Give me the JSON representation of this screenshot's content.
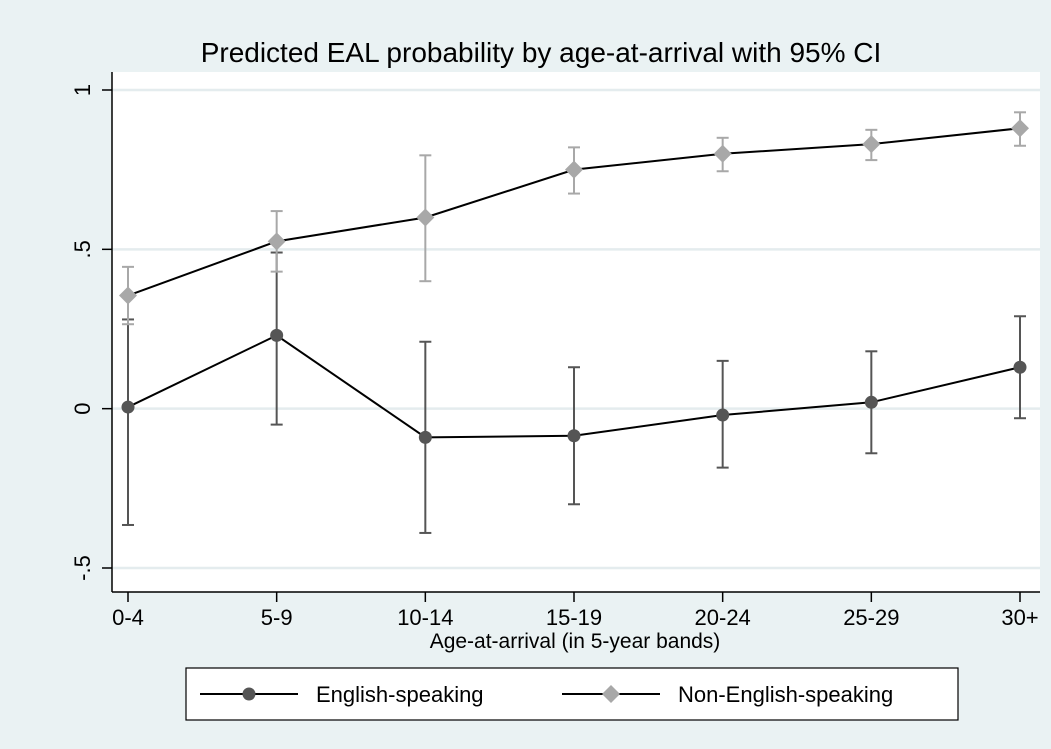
{
  "chart_data": {
    "type": "line",
    "title": "Predicted EAL probability by age-at-arrival with 95% CI",
    "xlabel": "Age-at-arrival (in 5-year bands)",
    "ylabel": "",
    "categories": [
      "0-4",
      "5-9",
      "10-14",
      "15-19",
      "20-24",
      "25-29",
      "30+"
    ],
    "ylim": [
      -0.5,
      1
    ],
    "yticks": [
      -0.5,
      0,
      0.5,
      1
    ],
    "ytick_labels": [
      "-.5",
      "0",
      ".5",
      "1"
    ],
    "grid": true,
    "legend_position": "bottom",
    "series": [
      {
        "name": "English-speaking",
        "color": "#555555",
        "marker": "circle",
        "values": [
          0.005,
          0.23,
          -0.09,
          -0.085,
          -0.02,
          0.02,
          0.13
        ],
        "ci_low": [
          -0.365,
          -0.05,
          -0.39,
          -0.3,
          -0.185,
          -0.14,
          -0.03
        ],
        "ci_high": [
          0.28,
          0.49,
          0.21,
          0.13,
          0.15,
          0.18,
          0.29
        ]
      },
      {
        "name": "Non-English-speaking",
        "color": "#a8a8a8",
        "marker": "diamond",
        "values": [
          0.355,
          0.525,
          0.6,
          0.75,
          0.8,
          0.83,
          0.88
        ],
        "ci_low": [
          0.265,
          0.43,
          0.4,
          0.675,
          0.745,
          0.78,
          0.825
        ],
        "ci_high": [
          0.445,
          0.62,
          0.795,
          0.82,
          0.85,
          0.875,
          0.93
        ]
      }
    ]
  }
}
